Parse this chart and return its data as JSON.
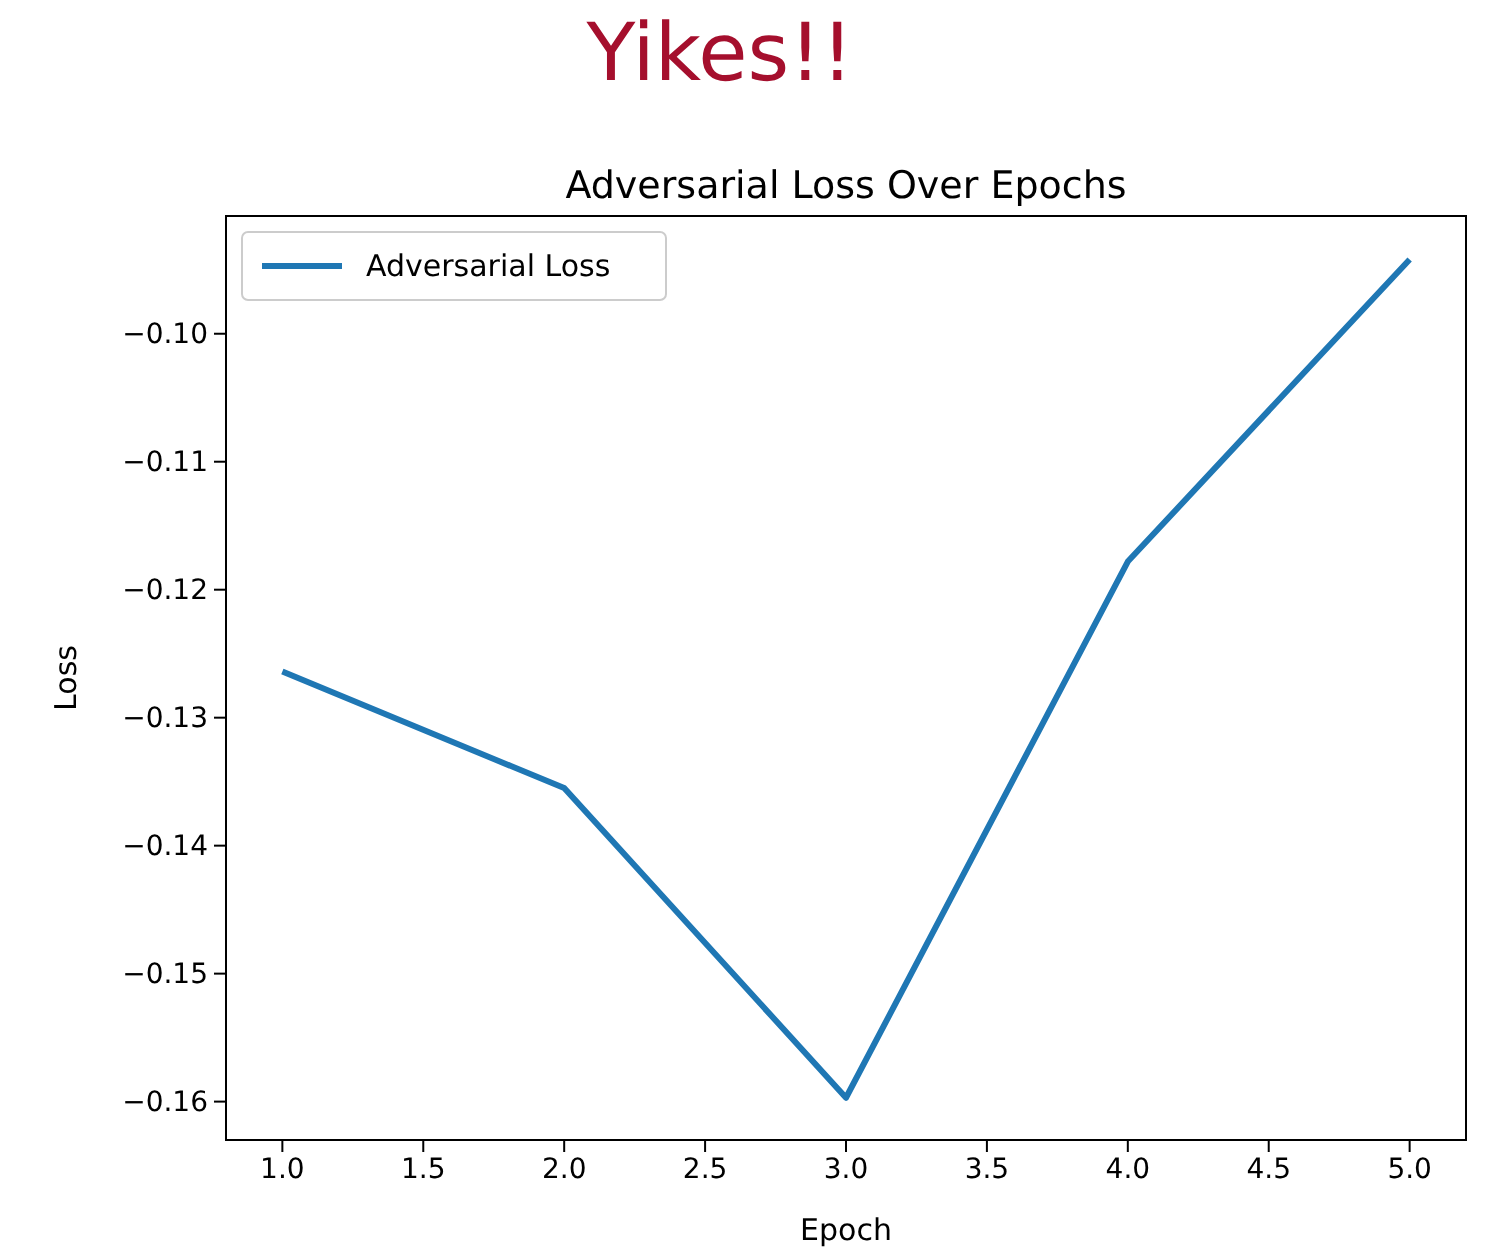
{
  "chart_data": {
    "type": "line",
    "title": "Yikes!!",
    "subtitle": "Adversarial Loss Over Epochs",
    "xlabel": "Epoch",
    "ylabel": "Loss",
    "x": [
      1,
      2,
      3,
      4,
      5
    ],
    "series": [
      {
        "name": "Adversarial Loss",
        "color": "#1f77b4",
        "values": [
          -0.1264,
          -0.1355,
          -0.1597,
          -0.1178,
          -0.0942
        ]
      }
    ],
    "xlim": [
      0.8,
      5.2
    ],
    "xticks": [
      {
        "value": 1,
        "label": "1.0"
      },
      {
        "value": 1.5,
        "label": "1.5"
      },
      {
        "value": 2,
        "label": "2.0"
      },
      {
        "value": 2.5,
        "label": "2.5"
      },
      {
        "value": 3,
        "label": "3.0"
      },
      {
        "value": 3.5,
        "label": "3.5"
      },
      {
        "value": 4,
        "label": "4.0"
      },
      {
        "value": 4.5,
        "label": "4.5"
      },
      {
        "value": 5,
        "label": "5.0"
      }
    ],
    "ylim": [
      -0.163,
      -0.0908
    ],
    "yticks": [
      {
        "value": -0.16,
        "label": "−0.16"
      },
      {
        "value": -0.15,
        "label": "−0.15"
      },
      {
        "value": -0.14,
        "label": "−0.14"
      },
      {
        "value": -0.13,
        "label": "−0.13"
      },
      {
        "value": -0.12,
        "label": "−0.12"
      },
      {
        "value": -0.11,
        "label": "−0.11"
      },
      {
        "value": -0.1,
        "label": "−0.10"
      }
    ],
    "grid": false,
    "legend": "top left",
    "marker": "none",
    "line_style": "solid"
  }
}
